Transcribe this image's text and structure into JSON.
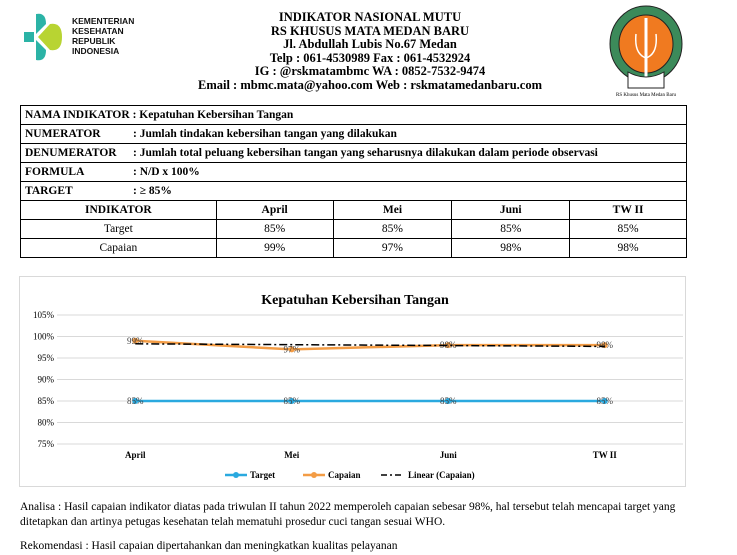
{
  "logo_left": {
    "lines": [
      "KEMENTERIAN",
      "KESEHATAN",
      "REPUBLIK",
      "INDONESIA"
    ]
  },
  "header": {
    "lines": [
      "INDIKATOR NASIONAL MUTU",
      "RS KHUSUS MATA MEDAN BARU",
      "Jl. Abdullah Lubis No.67 Medan",
      "Telp : 061-4530989  Fax : 061-4532924",
      "IG : @rskmatambmc  WA : 0852-7532-9474",
      "Email : mbmc.mata@yahoo.com  Web : rskmatamedanbaru.com"
    ]
  },
  "logo_right": {
    "caption": "RS Khusus Mata Medan Baru"
  },
  "info": [
    {
      "label": "NAMA INDIKATOR",
      "value": ": Kepatuhan Kebersihan Tangan"
    },
    {
      "label": "NUMERATOR",
      "value": ": Jumlah tindakan kebersihan tangan yang dilakukan"
    },
    {
      "label": "DENUMERATOR",
      "value": ": Jumlah total peluang kebersihan tangan yang seharusnya dilakukan dalam periode observasi"
    },
    {
      "label": "FORMULA",
      "value": ": N/D x 100%"
    },
    {
      "label": "TARGET",
      "value": ": ≥ 85%"
    }
  ],
  "table": {
    "headers": [
      "INDIKATOR",
      "April",
      "Mei",
      "Juni",
      "TW II"
    ],
    "rows": [
      [
        "Target",
        "85%",
        "85%",
        "85%",
        "85%"
      ],
      [
        "Capaian",
        "99%",
        "97%",
        "98%",
        "98%"
      ]
    ]
  },
  "chart_data": {
    "type": "line",
    "title": "Kepatuhan Kebersihan Tangan",
    "categories": [
      "April",
      "Mei",
      "Juni",
      "TW II"
    ],
    "series": [
      {
        "name": "Target",
        "values": [
          85,
          85,
          85,
          85
        ],
        "color": "#2aa9df"
      },
      {
        "name": "Capaian",
        "values": [
          99,
          97,
          98,
          98
        ],
        "color": "#f39c45"
      }
    ],
    "trendline": {
      "name": "Linear (Capaian)",
      "of": "Capaian",
      "color": "#000000"
    },
    "ylim": [
      75,
      105
    ],
    "yticks": [
      75,
      80,
      85,
      90,
      95,
      100,
      105
    ],
    "ytick_format": "percent",
    "grid": true,
    "legend": "bottom",
    "data_labels": true
  },
  "analisa": "Analisa : Hasil capaian indikator diatas pada triwulan II tahun 2022 memperoleh capaian sebesar 98%, hal tersebut telah mencapai target yang ditetapkan dan artinya petugas kesehatan telah mematuhi prosedur cuci tangan sesuai WHO.",
  "rekomendasi": "Rekomendasi : Hasil capaian dipertahankan dan meningkatkan kualitas pelayanan"
}
